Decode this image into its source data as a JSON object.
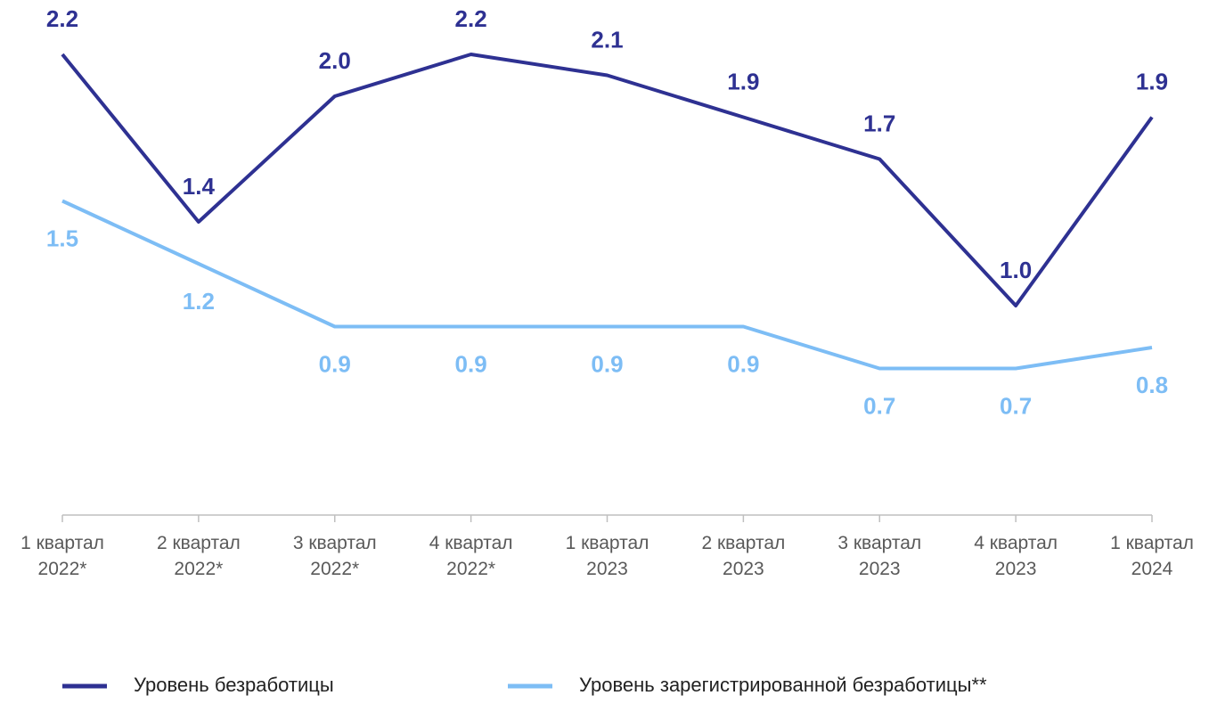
{
  "chart_data": {
    "type": "line",
    "categories": [
      [
        "1 квартал",
        "2022*"
      ],
      [
        "2 квартал",
        "2022*"
      ],
      [
        "3 квартал",
        "2022*"
      ],
      [
        "4 квартал",
        "2022*"
      ],
      [
        "1 квартал",
        "2023"
      ],
      [
        "2 квартал",
        "2023"
      ],
      [
        "3 квартал",
        "2023"
      ],
      [
        "4 квартал",
        "2023"
      ],
      [
        "1 квартал",
        "2024"
      ]
    ],
    "series": [
      {
        "name": "Уровень безработицы",
        "color": "#2e3192",
        "values": [
          2.2,
          1.4,
          2.0,
          2.2,
          2.1,
          1.9,
          1.7,
          1.0,
          1.9
        ],
        "value_labels": [
          "2.2",
          "1.4",
          "2.0",
          "2.2",
          "2.1",
          "1.9",
          "1.7",
          "1.0",
          "1.9"
        ]
      },
      {
        "name": "Уровень зарегистрированной безработицы**",
        "color": "#7dbdf5",
        "values": [
          1.5,
          1.2,
          0.9,
          0.9,
          0.9,
          0.9,
          0.7,
          0.7,
          0.8
        ],
        "value_labels": [
          "1.5",
          "1.2",
          "0.9",
          "0.9",
          "0.9",
          "0.9",
          "0.7",
          "0.7",
          "0.8"
        ]
      }
    ],
    "ylim": [
      0,
      2.2
    ],
    "grid": false,
    "legend": "bottom"
  }
}
